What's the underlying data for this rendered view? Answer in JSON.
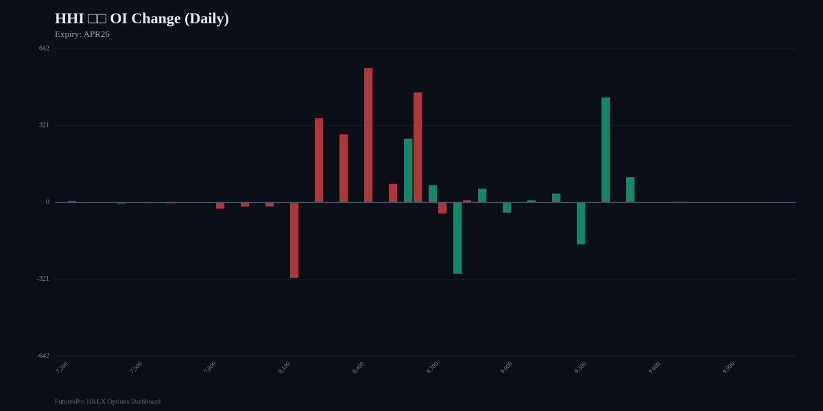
{
  "chart_data": {
    "type": "bar",
    "title": "HHI □□ OI Change (Daily)",
    "subtitle": "Expiry: APR26",
    "footer": "FuturesPro HKEX Options Dashboard",
    "categories": [
      "7,200",
      null,
      null,
      "7,500",
      null,
      null,
      "7,800",
      null,
      null,
      "8,100",
      null,
      null,
      "8,400",
      null,
      null,
      "8,700",
      null,
      null,
      "9,000",
      null,
      null,
      "9,300",
      null,
      null,
      "9,600",
      null,
      null,
      "9,900",
      null,
      null
    ],
    "series": [
      {
        "color": "#13876a",
        "values": [
          0,
          0,
          0,
          0,
          0,
          0,
          0,
          0,
          0,
          0,
          0,
          0,
          1,
          0,
          266,
          72,
          -298,
          57,
          -43,
          9,
          37,
          -175,
          438,
          106,
          0,
          2,
          0,
          0,
          0,
          0
        ]
      },
      {
        "color": "#b0363a",
        "values": [
          6,
          0,
          -5,
          -2,
          -4,
          0,
          -26,
          -17,
          -17,
          -315,
          352,
          284,
          561,
          77,
          459,
          -46,
          9,
          0,
          0,
          0,
          0,
          0,
          0,
          0,
          0,
          0,
          0,
          0,
          0,
          0
        ]
      }
    ],
    "ylim": [
      -642,
      642
    ],
    "yticks": [
      -642,
      -321,
      0,
      321,
      642
    ],
    "grid": true
  }
}
